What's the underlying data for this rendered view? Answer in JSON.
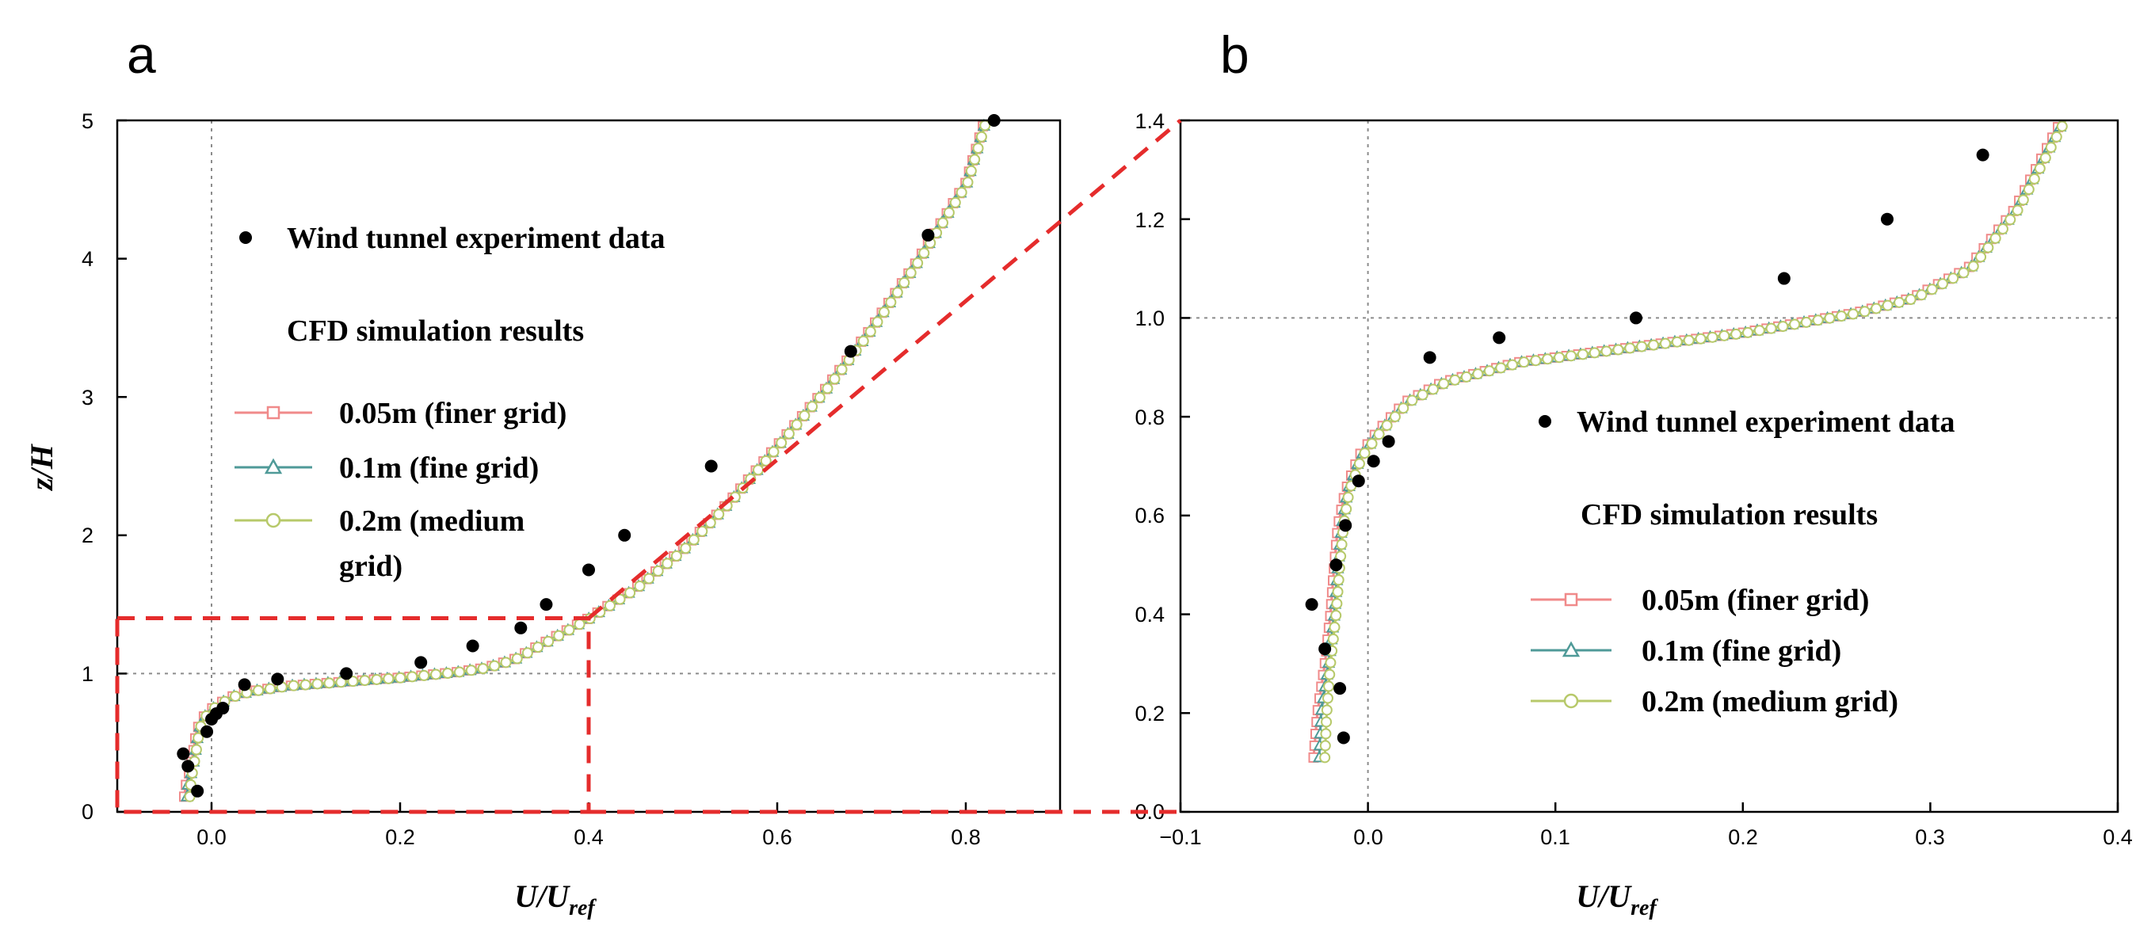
{
  "colors": {
    "exp": "#000000",
    "finer": "#f08a8a",
    "fine": "#4f9a98",
    "medium": "#b7c96a",
    "zoom": "#e52c2c",
    "refline": "#8c8c8c"
  },
  "chart_data": [
    {
      "panel_label": "a",
      "type": "scatter+line",
      "xlabel_main": "U/U",
      "xlabel_sub": "ref",
      "ylabel": "z/H",
      "xlim": [
        -0.1,
        0.9
      ],
      "ylim": [
        0,
        5
      ],
      "xticks": [
        "0.0",
        "0.2",
        "0.4",
        "0.6",
        "0.8"
      ],
      "yticks": [
        "0",
        "1",
        "2",
        "3",
        "4",
        "5"
      ],
      "ref_lines": {
        "x": 0,
        "y": 1
      },
      "legend": {
        "exp_label": "Wind tunnel experiment data",
        "cfd_title": "CFD simulation results",
        "finer_label": "0.05m (finer grid)",
        "fine_label": "0.1m (fine grid)",
        "medium_label_line1": "0.2m (medium",
        "medium_label_line2": "grid)"
      },
      "zoom_box": {
        "x": [
          -0.1,
          0.4
        ],
        "y": [
          0,
          1.4
        ]
      },
      "experiment": {
        "x": [
          -0.03,
          -0.025,
          -0.015,
          -0.005,
          0.0,
          0.005,
          0.012,
          0.035,
          0.07,
          0.143,
          0.222,
          0.277,
          0.328,
          0.355,
          0.4,
          0.438,
          0.53,
          0.678,
          0.76,
          0.83
        ],
        "y": [
          0.42,
          0.33,
          0.15,
          0.58,
          0.67,
          0.71,
          0.75,
          0.92,
          0.96,
          1.0,
          1.08,
          1.2,
          1.33,
          1.5,
          1.75,
          2.0,
          2.5,
          3.33,
          4.17,
          5.0
        ]
      },
      "cfd_series": [
        {
          "name": "0.05m (finer grid)",
          "x": [
            -0.029,
            -0.027,
            -0.023,
            -0.02,
            -0.018,
            -0.016,
            -0.012,
            -0.005,
            0.005,
            0.02,
            0.04,
            0.08,
            0.12,
            0.16,
            0.2,
            0.23,
            0.26,
            0.29,
            0.32,
            0.36,
            0.4,
            0.45,
            0.5,
            0.55,
            0.6,
            0.65,
            0.7,
            0.75,
            0.8,
            0.82
          ],
          "y": [
            0.11,
            0.2,
            0.3,
            0.4,
            0.5,
            0.58,
            0.65,
            0.72,
            0.77,
            0.83,
            0.87,
            0.91,
            0.93,
            0.95,
            0.97,
            0.99,
            1.01,
            1.04,
            1.1,
            1.25,
            1.4,
            1.62,
            1.9,
            2.25,
            2.65,
            3.05,
            3.5,
            4.0,
            4.55,
            5.0
          ]
        },
        {
          "name": "0.1m (fine grid)",
          "x": [
            -0.026,
            -0.025,
            -0.021,
            -0.018,
            -0.016,
            -0.014,
            -0.011,
            -0.004,
            0.006,
            0.021,
            0.041,
            0.081,
            0.121,
            0.161,
            0.201,
            0.231,
            0.261,
            0.291,
            0.321,
            0.361,
            0.401,
            0.451,
            0.501,
            0.551,
            0.601,
            0.651,
            0.701,
            0.751,
            0.801,
            0.821
          ],
          "y": [
            0.11,
            0.2,
            0.3,
            0.4,
            0.5,
            0.58,
            0.65,
            0.72,
            0.77,
            0.83,
            0.87,
            0.91,
            0.93,
            0.95,
            0.97,
            0.99,
            1.01,
            1.04,
            1.1,
            1.25,
            1.4,
            1.62,
            1.9,
            2.25,
            2.65,
            3.05,
            3.5,
            4.0,
            4.55,
            5.0
          ]
        },
        {
          "name": "0.2m (medium grid)",
          "x": [
            -0.023,
            -0.022,
            -0.02,
            -0.017,
            -0.015,
            -0.013,
            -0.01,
            -0.003,
            0.007,
            0.022,
            0.042,
            0.082,
            0.122,
            0.162,
            0.202,
            0.232,
            0.262,
            0.292,
            0.322,
            0.362,
            0.402,
            0.452,
            0.502,
            0.552,
            0.602,
            0.652,
            0.702,
            0.752,
            0.802,
            0.822
          ],
          "y": [
            0.11,
            0.2,
            0.3,
            0.4,
            0.5,
            0.58,
            0.65,
            0.72,
            0.77,
            0.83,
            0.87,
            0.91,
            0.93,
            0.95,
            0.97,
            0.99,
            1.01,
            1.04,
            1.1,
            1.25,
            1.4,
            1.62,
            1.9,
            2.25,
            2.65,
            3.05,
            3.5,
            4.0,
            4.55,
            5.0
          ]
        }
      ]
    },
    {
      "panel_label": "b",
      "type": "scatter+line",
      "xlabel_main": "U/U",
      "xlabel_sub": "ref",
      "ylabel": "",
      "xlim": [
        -0.1,
        0.4
      ],
      "ylim": [
        0,
        1.4
      ],
      "xticks": [
        "−0.1",
        "0.0",
        "0.1",
        "0.2",
        "0.3",
        "0.4"
      ],
      "yticks": [
        "0.0",
        "0.2",
        "0.4",
        "0.6",
        "0.8",
        "1.0",
        "1.2",
        "1.4"
      ],
      "ref_lines": {
        "x": 0,
        "y": 1
      },
      "legend": {
        "exp_label": "Wind tunnel experiment data",
        "cfd_title": "CFD simulation results",
        "finer_label": "0.05m (finer grid)",
        "fine_label": "0.1m (fine grid)",
        "medium_label": "0.2m (medium grid)"
      },
      "experiment": {
        "x": [
          -0.03,
          -0.023,
          -0.015,
          -0.013,
          -0.017,
          -0.012,
          -0.005,
          0.003,
          0.011,
          0.033,
          0.07,
          0.143,
          0.222,
          0.277,
          0.328
        ],
        "y": [
          0.42,
          0.33,
          0.25,
          0.15,
          0.5,
          0.58,
          0.67,
          0.71,
          0.75,
          0.92,
          0.96,
          1.0,
          1.08,
          1.2,
          1.33
        ]
      },
      "cfd_series": [
        {
          "name": "0.05m (finer grid)",
          "x": [
            -0.029,
            -0.027,
            -0.023,
            -0.02,
            -0.018,
            -0.016,
            -0.012,
            -0.005,
            0.005,
            0.02,
            0.04,
            0.08,
            0.12,
            0.16,
            0.2,
            0.23,
            0.26,
            0.29,
            0.32,
            0.345,
            0.37
          ],
          "y": [
            0.11,
            0.2,
            0.3,
            0.4,
            0.5,
            0.58,
            0.65,
            0.72,
            0.77,
            0.83,
            0.87,
            0.91,
            0.93,
            0.95,
            0.97,
            0.99,
            1.01,
            1.04,
            1.1,
            1.22,
            1.4
          ]
        },
        {
          "name": "0.1m (fine grid)",
          "x": [
            -0.026,
            -0.025,
            -0.021,
            -0.018,
            -0.016,
            -0.014,
            -0.011,
            -0.004,
            0.006,
            0.021,
            0.041,
            0.081,
            0.121,
            0.161,
            0.201,
            0.231,
            0.261,
            0.291,
            0.321,
            0.346,
            0.371
          ],
          "y": [
            0.11,
            0.2,
            0.3,
            0.4,
            0.5,
            0.58,
            0.65,
            0.72,
            0.77,
            0.83,
            0.87,
            0.91,
            0.93,
            0.95,
            0.97,
            0.99,
            1.01,
            1.04,
            1.1,
            1.22,
            1.4
          ]
        },
        {
          "name": "0.2m (medium grid)",
          "x": [
            -0.023,
            -0.022,
            -0.02,
            -0.017,
            -0.015,
            -0.013,
            -0.01,
            -0.003,
            0.007,
            0.022,
            0.042,
            0.082,
            0.122,
            0.162,
            0.202,
            0.232,
            0.262,
            0.292,
            0.322,
            0.347,
            0.372
          ],
          "y": [
            0.11,
            0.2,
            0.3,
            0.4,
            0.5,
            0.58,
            0.65,
            0.72,
            0.77,
            0.83,
            0.87,
            0.91,
            0.93,
            0.95,
            0.97,
            0.99,
            1.01,
            1.04,
            1.1,
            1.22,
            1.4
          ]
        }
      ]
    }
  ]
}
